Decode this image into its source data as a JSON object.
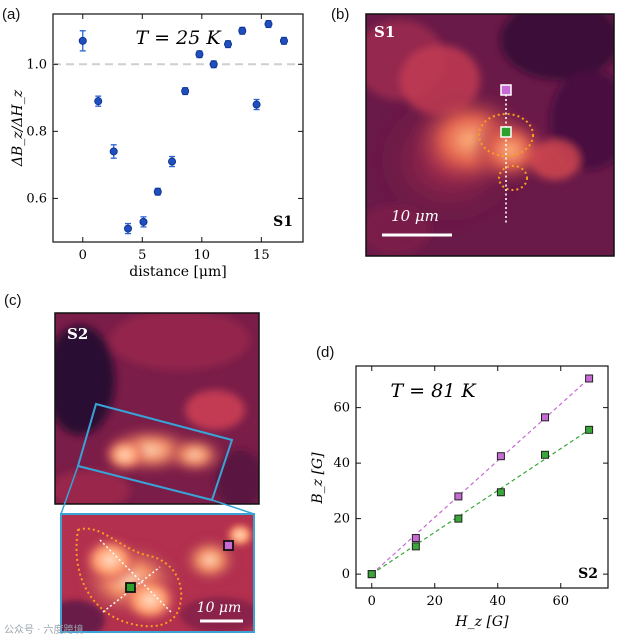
{
  "panels": {
    "a": "(a)",
    "b": "(b)",
    "c": "(c)",
    "d": "(d)"
  },
  "chart_data": [
    {
      "id": "a",
      "type": "scatter",
      "title": "T = 25 K",
      "xlabel": "distance [μm]",
      "ylabel": "ΔB_z/ΔH_z",
      "xlim": [
        -2.5,
        18.5
      ],
      "ylim": [
        0.47,
        1.15
      ],
      "xticks": [
        0,
        5,
        10,
        15
      ],
      "yticks": [
        0.6,
        0.8,
        1.0
      ],
      "ytick_labels": [
        "0.6",
        "0.8",
        "1.0"
      ],
      "reference_line": 1.0,
      "sample_label": "S1",
      "marker_color": "#1f4fbf",
      "x": [
        0.0,
        1.3,
        2.6,
        3.8,
        5.1,
        6.3,
        7.5,
        8.6,
        9.8,
        11.0,
        12.2,
        13.4,
        14.6,
        15.6,
        16.9
      ],
      "y": [
        1.07,
        0.89,
        0.74,
        0.51,
        0.53,
        0.62,
        0.71,
        0.92,
        1.03,
        1.0,
        1.06,
        1.1,
        0.88,
        1.12,
        1.07
      ],
      "err": [
        0.03,
        0.015,
        0.02,
        0.015,
        0.015,
        0.01,
        0.015,
        0.01,
        0.01,
        0.01,
        0.01,
        0.01,
        0.015,
        0.01,
        0.01
      ]
    },
    {
      "id": "d",
      "type": "scatter",
      "title": "T = 81 K",
      "xlabel": "H_z [G]",
      "ylabel": "B_z [G]",
      "xlim": [
        -5,
        75
      ],
      "ylim": [
        -5,
        75
      ],
      "xticks": [
        0,
        20,
        40,
        60
      ],
      "yticks": [
        0,
        20,
        40,
        60
      ],
      "sample_label": "S2",
      "series": [
        {
          "name": "purple",
          "color": "#c86ad6",
          "x": [
            0,
            14,
            27.5,
            41,
            55,
            69
          ],
          "y": [
            0,
            13,
            28,
            42.5,
            56.5,
            70.5
          ]
        },
        {
          "name": "green",
          "color": "#3aa63a",
          "x": [
            0,
            14,
            27.5,
            41,
            55,
            69
          ],
          "y": [
            0,
            10,
            20,
            29.5,
            43,
            52
          ]
        }
      ]
    }
  ],
  "images": {
    "b": {
      "sample_label": "S1",
      "scalebar_label": "10 μm"
    },
    "c": {
      "sample_label": "S2",
      "scalebar_label": "10 μm"
    }
  },
  "watermark": "公众号 · 六度跨境",
  "colors": {
    "map_dark": "#3a0d38",
    "map_mid": "#b3244d",
    "map_bright": "#ff9a6a",
    "inset_frame": "#3aa3d6",
    "dotted_outline": "#f6a020"
  }
}
